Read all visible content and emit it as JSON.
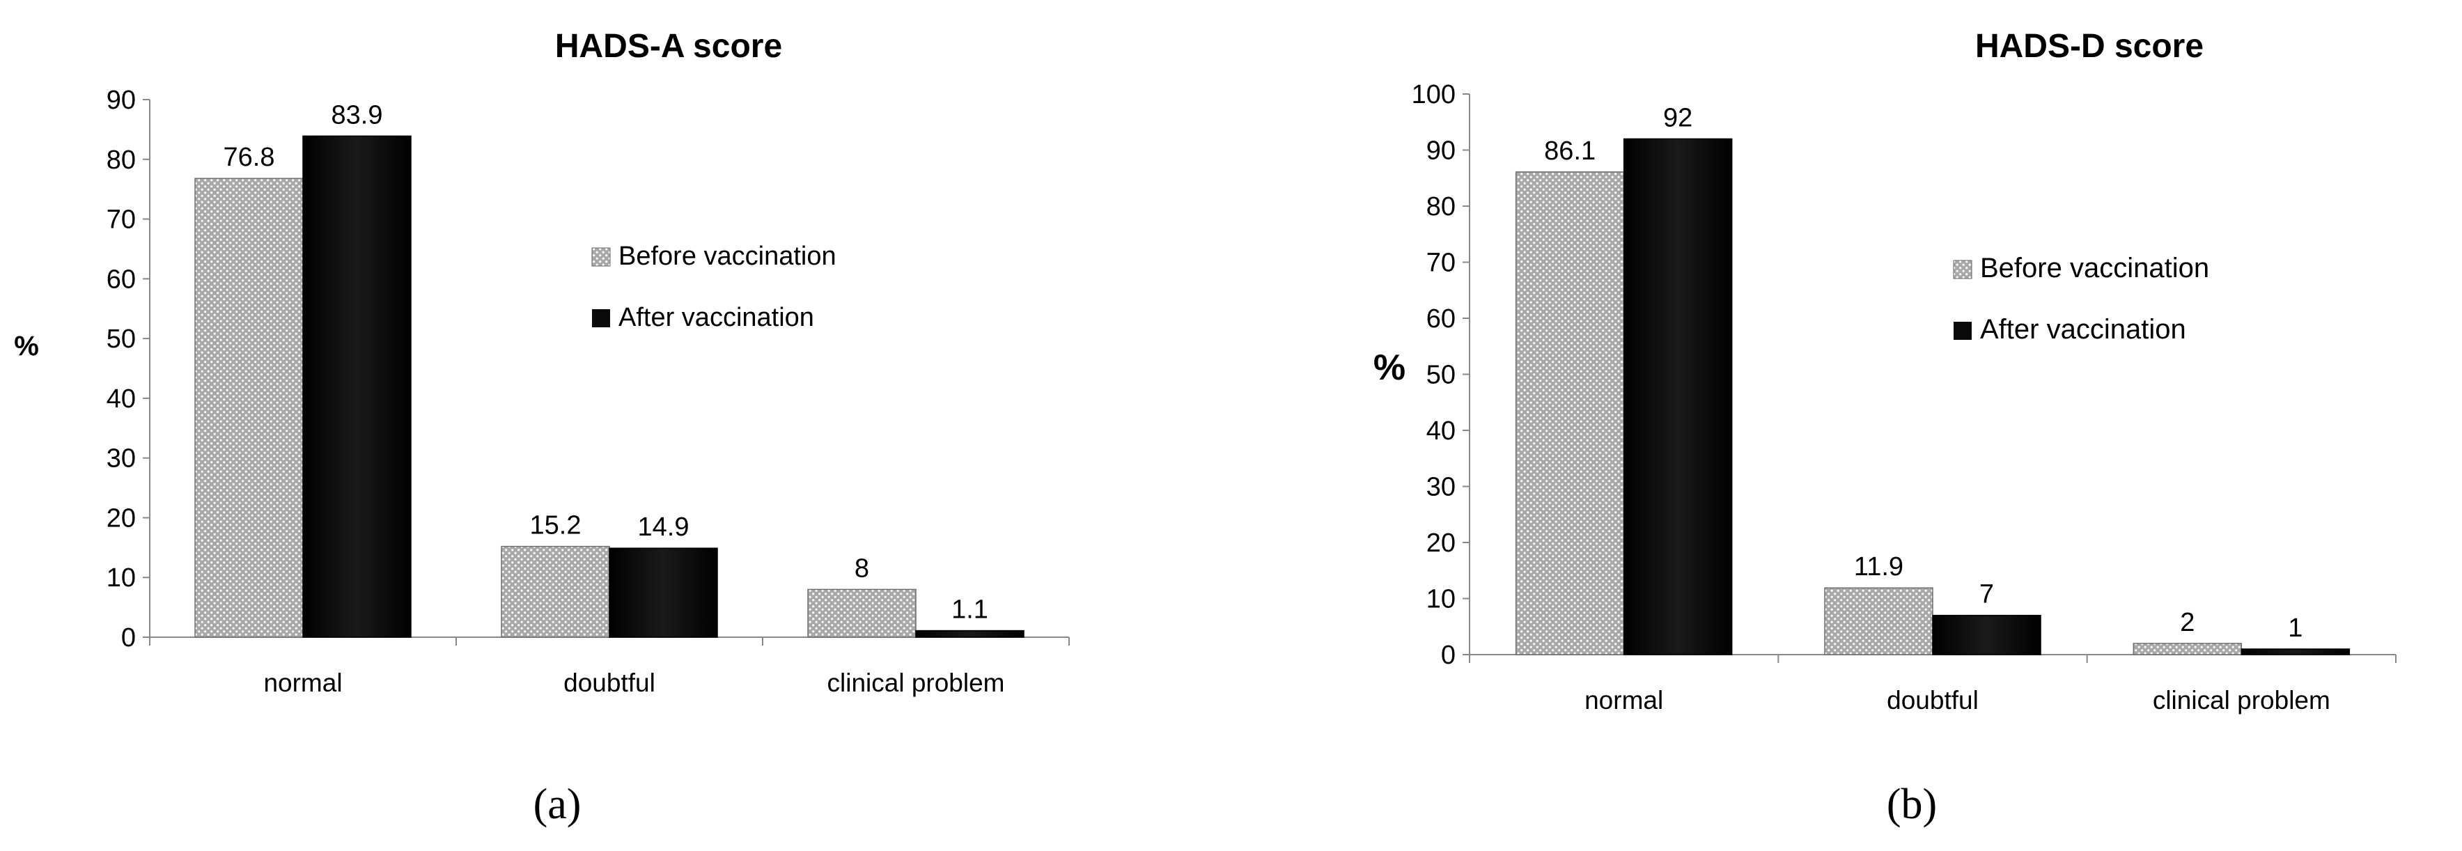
{
  "chart_data": [
    {
      "type": "bar",
      "title": "HADS-A score",
      "panel_label": "(a)",
      "ylabel": "%",
      "ylim": [
        0,
        90
      ],
      "yticks": [
        0,
        10,
        20,
        30,
        40,
        50,
        60,
        70,
        80,
        90
      ],
      "categories": [
        "normal",
        "doubtful",
        "clinical problem"
      ],
      "legend_position": "right",
      "series": [
        {
          "name": "Before vaccination",
          "values": [
            76.8,
            15.2,
            8
          ],
          "labels": [
            "76.8",
            "15.2",
            "8"
          ],
          "style": "dotted-gray"
        },
        {
          "name": "After vaccination",
          "values": [
            83.9,
            14.9,
            1.1
          ],
          "labels": [
            "83.9",
            "14.9",
            "1.1"
          ],
          "style": "black"
        }
      ]
    },
    {
      "type": "bar",
      "title": "HADS-D score",
      "panel_label": "(b)",
      "ylabel": "%",
      "ylim": [
        0,
        100
      ],
      "yticks": [
        0,
        10,
        20,
        30,
        40,
        50,
        60,
        70,
        80,
        90,
        100
      ],
      "categories": [
        "normal",
        "doubtful",
        "clinical problem"
      ],
      "legend_position": "right",
      "series": [
        {
          "name": "Before vaccination",
          "values": [
            86.1,
            11.9,
            2
          ],
          "labels": [
            "86.1",
            "11.9",
            "2"
          ],
          "style": "dotted-gray"
        },
        {
          "name": "After vaccination",
          "values": [
            92,
            7,
            1
          ],
          "labels": [
            "92",
            "7",
            "1"
          ],
          "style": "black"
        }
      ]
    }
  ],
  "colors": {
    "before_fill": "#a8a8a8",
    "before_dot": "#ffffff",
    "after_fill": "#0a0a0a",
    "axis": "#888888"
  }
}
